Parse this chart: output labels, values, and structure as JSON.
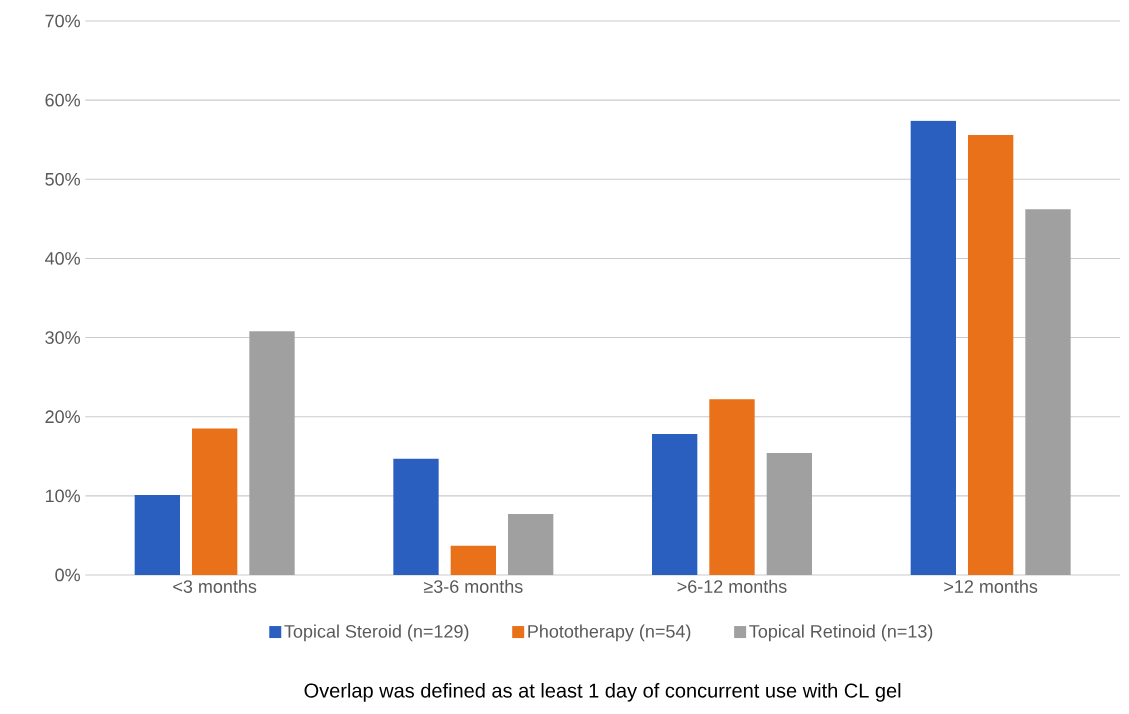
{
  "chart_data": {
    "type": "bar",
    "categories": [
      "<3 months",
      "≥3-6 months",
      ">6-12 months",
      ">12 months"
    ],
    "series": [
      {
        "name": "Topical Steroid (n=129)",
        "color": "#2a5fc0",
        "values": [
          10.1,
          14.7,
          17.8,
          57.4
        ]
      },
      {
        "name": "Phototherapy (n=54)",
        "color": "#e8711a",
        "values": [
          18.5,
          3.7,
          22.2,
          55.6
        ]
      },
      {
        "name": "Topical Retinoid (n=13)",
        "color": "#a0a0a0",
        "values": [
          30.8,
          7.7,
          15.4,
          46.2
        ]
      }
    ],
    "ylim": [
      0,
      70
    ],
    "yticks": [
      {
        "value": 0,
        "label": "0%"
      },
      {
        "value": 10,
        "label": "10%"
      },
      {
        "value": 20,
        "label": "20%"
      },
      {
        "value": 30,
        "label": "30%"
      },
      {
        "value": 40,
        "label": "40%"
      },
      {
        "value": 50,
        "label": "50%"
      },
      {
        "value": 60,
        "label": "60%"
      },
      {
        "value": 70,
        "label": "70%"
      }
    ],
    "grid": "y",
    "legend": "bottom",
    "annotations": [
      "Overlap was defined as at least 1 day of concurrent use with CL gel"
    ]
  }
}
